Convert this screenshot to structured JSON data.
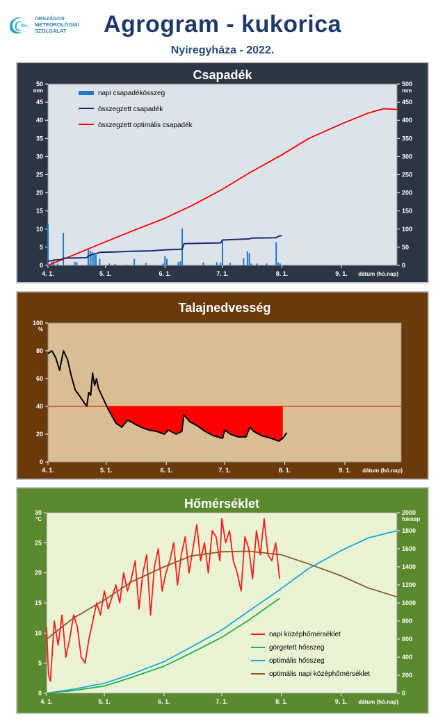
{
  "header": {
    "logo_lines": [
      "ORSZÁGOS",
      "METEOROLÓGIAI",
      "SZOLGÁLAT"
    ],
    "title": "Agrogram - kukorica",
    "subtitle": "Nyíregyháza - 2022."
  },
  "colors": {
    "precip_panel_bg": "#2b3544",
    "precip_plot_bg": "#dde3ea",
    "soil_panel_bg": "#6b3a0a",
    "soil_plot_bg": "#d9bd93",
    "temp_panel_bg": "#5b8a2e",
    "temp_plot_bg": "#eaf3d3",
    "daily_precip": "#1f78c8",
    "cumulative_precip": "#1a2b6b",
    "optimal_precip": "#ff0000",
    "daily_temp": "#ff1a1a",
    "rolling_heat": "#22b14c",
    "optimal_heat": "#1aa7e0",
    "optimal_temp": "#8b5a2b"
  },
  "chart_data": [
    {
      "type": "bar+line",
      "title": "Csapadék",
      "xlabel": "dátum (hó.nap)",
      "xticks": [
        "4. 1.",
        "5. 1.",
        "6. 1.",
        "7. 1.",
        "8. 1.",
        "9. 1."
      ],
      "xlim": [
        "2022-04-01",
        "2022-09-30"
      ],
      "y_left": {
        "unit": "mm",
        "lim": [
          0,
          50
        ],
        "ticks": [
          "0",
          "5",
          "10",
          "15",
          "20",
          "25",
          "30",
          "35",
          "40",
          "45",
          "50"
        ]
      },
      "y_right": {
        "unit": "mm",
        "lim": [
          0,
          500
        ],
        "ticks": [
          "0",
          "50",
          "100",
          "150",
          "200",
          "250",
          "300",
          "350",
          "400",
          "450",
          "500"
        ]
      },
      "legend_position": "top-left",
      "series": [
        {
          "name": "napi csapadékösszeg",
          "kind": "bar",
          "axis": "left",
          "x": [
            "2022-04-01",
            "2022-04-03",
            "2022-04-04",
            "2022-04-06",
            "2022-04-09",
            "2022-04-15",
            "2022-04-16",
            "2022-04-22",
            "2022-04-23",
            "2022-04-24",
            "2022-04-25",
            "2022-04-26",
            "2022-04-28",
            "2022-05-03",
            "2022-05-06",
            "2022-05-12",
            "2022-05-16",
            "2022-05-22",
            "2022-05-31",
            "2022-06-01",
            "2022-06-02",
            "2022-06-08",
            "2022-06-09",
            "2022-06-10",
            "2022-06-21",
            "2022-06-28",
            "2022-06-30",
            "2022-07-01",
            "2022-07-05",
            "2022-07-12",
            "2022-07-14",
            "2022-07-15",
            "2022-07-16",
            "2022-07-19",
            "2022-07-24",
            "2022-07-29",
            "2022-07-30",
            "2022-07-31"
          ],
          "values": [
            11.3,
            1.0,
            1.7,
            0.5,
            9.0,
            1.0,
            0.9,
            4.5,
            4.1,
            3.7,
            3.2,
            3.0,
            1.8,
            0.5,
            0.4,
            0.2,
            1.8,
            0.6,
            0.5,
            2.5,
            1.8,
            0.9,
            1.1,
            10.2,
            0.8,
            0.9,
            0.8,
            6.8,
            0.7,
            2.0,
            3.9,
            3.3,
            0.5,
            0.5,
            0.5,
            6.4,
            0.8,
            0.5
          ]
        },
        {
          "name": "összegzett csapadék",
          "kind": "line",
          "axis": "right",
          "x": [
            "2022-04-01",
            "2022-04-03",
            "2022-04-05",
            "2022-04-08",
            "2022-04-09",
            "2022-04-21",
            "2022-04-22",
            "2022-04-24",
            "2022-04-27",
            "2022-04-28",
            "2022-05-05",
            "2022-05-16",
            "2022-05-25",
            "2022-06-01",
            "2022-06-08",
            "2022-06-10",
            "2022-06-11",
            "2022-06-30",
            "2022-07-01",
            "2022-07-15",
            "2022-07-16",
            "2022-07-29",
            "2022-07-30",
            "2022-08-01"
          ],
          "values": [
            12,
            13,
            15,
            16,
            20,
            21,
            25,
            30,
            34,
            36,
            37,
            39,
            40,
            43,
            44,
            45,
            60,
            62,
            70,
            73,
            75,
            76,
            80,
            82
          ]
        },
        {
          "name": "összegzett optimális csapadék",
          "kind": "line",
          "axis": "right",
          "x": [
            "2022-04-01",
            "2022-04-15",
            "2022-05-01",
            "2022-05-15",
            "2022-06-01",
            "2022-06-15",
            "2022-07-01",
            "2022-07-15",
            "2022-08-01",
            "2022-08-15",
            "2022-09-01",
            "2022-09-15",
            "2022-09-23",
            "2022-09-30"
          ],
          "values": [
            0,
            30,
            65,
            95,
            130,
            165,
            210,
            255,
            305,
            350,
            390,
            420,
            432,
            430
          ]
        }
      ]
    },
    {
      "type": "line",
      "title": "Talajnedvesség",
      "xlabel": "dátum (hó.nap)",
      "xticks": [
        "4. 1.",
        "5. 1.",
        "6. 1.",
        "7. 1.",
        "8. 1.",
        "9. 1."
      ],
      "xlim": [
        "2022-04-01",
        "2022-09-30"
      ],
      "y": {
        "unit": "%",
        "lim": [
          0,
          100
        ],
        "ticks": [
          "0",
          "20",
          "40",
          "60",
          "80",
          "100"
        ]
      },
      "threshold": 40,
      "threshold_end": "2022-07-31",
      "series": [
        {
          "kind": "line",
          "x": [
            "2022-04-01",
            "2022-04-03",
            "2022-04-05",
            "2022-04-07",
            "2022-04-09",
            "2022-04-11",
            "2022-04-13",
            "2022-04-15",
            "2022-04-17",
            "2022-04-19",
            "2022-04-21",
            "2022-04-22",
            "2022-04-23",
            "2022-04-24",
            "2022-04-25",
            "2022-04-26",
            "2022-04-27",
            "2022-04-28",
            "2022-04-30",
            "2022-05-02",
            "2022-05-04",
            "2022-05-06",
            "2022-05-09",
            "2022-05-12",
            "2022-05-15",
            "2022-05-16",
            "2022-05-19",
            "2022-05-23",
            "2022-05-27",
            "2022-05-31",
            "2022-06-02",
            "2022-06-06",
            "2022-06-09",
            "2022-06-10",
            "2022-06-13",
            "2022-06-17",
            "2022-06-21",
            "2022-06-25",
            "2022-06-30",
            "2022-07-01",
            "2022-07-04",
            "2022-07-08",
            "2022-07-12",
            "2022-07-14",
            "2022-07-16",
            "2022-07-20",
            "2022-07-25",
            "2022-07-29",
            "2022-07-31",
            "2022-08-02"
          ],
          "values": [
            78,
            80,
            75,
            66,
            80,
            74,
            62,
            52,
            48,
            44,
            40,
            50,
            48,
            64,
            55,
            60,
            53,
            50,
            44,
            38,
            33,
            28,
            25,
            30,
            28,
            27,
            25,
            23,
            22,
            20,
            23,
            20,
            22,
            34,
            29,
            26,
            22,
            19,
            17,
            23,
            20,
            18,
            18,
            25,
            22,
            19,
            17,
            15,
            17,
            21
          ]
        }
      ]
    },
    {
      "type": "line",
      "title": "Hőmérséklet",
      "xlabel": "dátum (hó.nap)",
      "xticks": [
        "4. 1.",
        "5. 1.",
        "6. 1.",
        "7. 1.",
        "8. 1.",
        "9. 1."
      ],
      "xlim": [
        "2022-04-01",
        "2022-09-30"
      ],
      "y_left": {
        "unit": "°C",
        "lim": [
          0,
          30
        ],
        "ticks": [
          "0",
          "5",
          "10",
          "15",
          "20",
          "25",
          "30"
        ]
      },
      "y_right": {
        "unit": "foknap",
        "lim": [
          0,
          2000
        ],
        "ticks": [
          "0",
          "200",
          "400",
          "600",
          "800",
          "1000",
          "1200",
          "1400",
          "1600",
          "1800",
          "2000"
        ]
      },
      "legend_position": "bottom-right",
      "series": [
        {
          "name": "napi középhőmérséklet",
          "kind": "line",
          "axis": "left",
          "x": [
            "2022-04-01",
            "2022-04-02",
            "2022-04-03",
            "2022-04-05",
            "2022-04-07",
            "2022-04-09",
            "2022-04-11",
            "2022-04-13",
            "2022-04-15",
            "2022-04-17",
            "2022-04-19",
            "2022-04-21",
            "2022-04-23",
            "2022-04-25",
            "2022-04-27",
            "2022-04-29",
            "2022-05-01",
            "2022-05-03",
            "2022-05-05",
            "2022-05-07",
            "2022-05-09",
            "2022-05-11",
            "2022-05-13",
            "2022-05-15",
            "2022-05-17",
            "2022-05-19",
            "2022-05-21",
            "2022-05-23",
            "2022-05-25",
            "2022-05-27",
            "2022-05-29",
            "2022-05-31",
            "2022-06-02",
            "2022-06-04",
            "2022-06-06",
            "2022-06-08",
            "2022-06-10",
            "2022-06-12",
            "2022-06-14",
            "2022-06-16",
            "2022-06-18",
            "2022-06-20",
            "2022-06-22",
            "2022-06-24",
            "2022-06-26",
            "2022-06-28",
            "2022-06-30",
            "2022-07-01",
            "2022-07-03",
            "2022-07-05",
            "2022-07-07",
            "2022-07-09",
            "2022-07-11",
            "2022-07-13",
            "2022-07-15",
            "2022-07-17",
            "2022-07-19",
            "2022-07-21",
            "2022-07-23",
            "2022-07-25",
            "2022-07-27",
            "2022-07-29",
            "2022-07-31"
          ],
          "values": [
            11,
            3,
            2,
            12,
            8,
            13,
            6,
            9,
            13,
            11,
            6,
            5,
            9,
            12,
            15,
            13,
            17,
            14,
            16,
            18,
            15,
            20,
            17,
            19,
            22,
            14,
            20,
            23,
            13,
            21,
            24,
            17,
            20,
            22,
            25,
            18,
            23,
            26,
            20,
            24,
            28,
            22,
            25,
            20,
            27,
            26,
            22,
            29,
            25,
            27,
            22,
            20,
            17,
            26,
            24,
            19,
            27,
            23,
            29,
            23,
            22,
            25,
            19
          ]
        },
        {
          "name": "görgetett hősszeg",
          "kind": "line",
          "axis": "right",
          "x": [
            "2022-04-01",
            "2022-04-15",
            "2022-05-01",
            "2022-05-15",
            "2022-06-01",
            "2022-06-15",
            "2022-07-01",
            "2022-07-15",
            "2022-07-31"
          ],
          "values": [
            0,
            30,
            80,
            175,
            300,
            445,
            620,
            810,
            1050
          ]
        },
        {
          "name": "optimális hősszeg",
          "kind": "line",
          "axis": "right",
          "x": [
            "2022-04-01",
            "2022-04-15",
            "2022-05-01",
            "2022-05-15",
            "2022-06-01",
            "2022-06-15",
            "2022-07-01",
            "2022-07-15",
            "2022-08-01",
            "2022-08-15",
            "2022-09-01",
            "2022-09-15",
            "2022-09-30"
          ],
          "values": [
            0,
            45,
            110,
            210,
            350,
            510,
            700,
            910,
            1160,
            1380,
            1580,
            1720,
            1800
          ]
        },
        {
          "name": "optimális napi középhőmérséklet",
          "kind": "line",
          "axis": "left",
          "x": [
            "2022-04-01",
            "2022-04-15",
            "2022-05-01",
            "2022-05-15",
            "2022-06-01",
            "2022-06-15",
            "2022-07-01",
            "2022-07-15",
            "2022-08-01",
            "2022-08-15",
            "2022-09-01",
            "2022-09-15",
            "2022-09-30"
          ],
          "values": [
            9,
            12.5,
            15.5,
            18.5,
            21,
            22.8,
            23.5,
            23.6,
            23,
            21.5,
            19.5,
            17.5,
            16
          ]
        }
      ]
    }
  ]
}
